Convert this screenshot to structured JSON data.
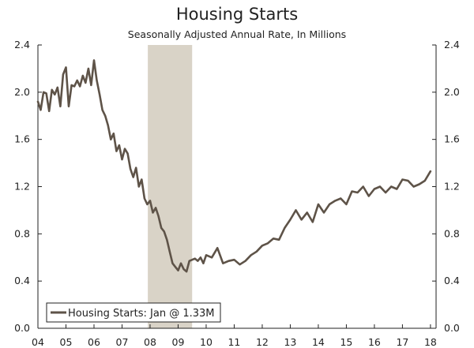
{
  "colors": {
    "line": "#5e5348",
    "recession": "#d9d3c7",
    "axis": "#222222"
  },
  "chart_data": {
    "type": "line",
    "title": "Housing Starts",
    "subtitle": "Seasonally Adjusted Annual Rate, In Millions",
    "xlabel": "",
    "ylabel": "",
    "x_tick_labels": [
      "04",
      "05",
      "06",
      "07",
      "08",
      "09",
      "10",
      "11",
      "12",
      "13",
      "14",
      "15",
      "16",
      "17",
      "18"
    ],
    "x_range": [
      2004,
      2018.2
    ],
    "y_tick_labels": [
      "0.0",
      "0.4",
      "0.8",
      "1.2",
      "1.6",
      "2.0",
      "2.4"
    ],
    "ylim": [
      0,
      2.4
    ],
    "right_axis": true,
    "grid": false,
    "recession_band": [
      2007.92,
      2009.5
    ],
    "legend": {
      "label": "Housing Starts: Jan @ 1.33M",
      "placement": "bottom-left"
    },
    "series": [
      {
        "name": "Housing Starts",
        "x": [
          2004.0,
          2004.1,
          2004.2,
          2004.3,
          2004.4,
          2004.5,
          2004.6,
          2004.7,
          2004.8,
          2004.9,
          2005.0,
          2005.1,
          2005.2,
          2005.3,
          2005.4,
          2005.5,
          2005.6,
          2005.7,
          2005.8,
          2005.9,
          2006.0,
          2006.1,
          2006.2,
          2006.3,
          2006.4,
          2006.5,
          2006.6,
          2006.7,
          2006.8,
          2006.9,
          2007.0,
          2007.1,
          2007.2,
          2007.3,
          2007.4,
          2007.5,
          2007.6,
          2007.7,
          2007.8,
          2007.9,
          2008.0,
          2008.1,
          2008.2,
          2008.3,
          2008.4,
          2008.5,
          2008.6,
          2008.7,
          2008.8,
          2008.9,
          2009.0,
          2009.1,
          2009.2,
          2009.3,
          2009.4,
          2009.5,
          2009.6,
          2009.7,
          2009.8,
          2009.9,
          2010.0,
          2010.2,
          2010.4,
          2010.6,
          2010.8,
          2011.0,
          2011.2,
          2011.4,
          2011.6,
          2011.8,
          2012.0,
          2012.2,
          2012.4,
          2012.6,
          2012.8,
          2013.0,
          2013.2,
          2013.4,
          2013.6,
          2013.8,
          2014.0,
          2014.2,
          2014.4,
          2014.6,
          2014.8,
          2015.0,
          2015.2,
          2015.4,
          2015.6,
          2015.8,
          2016.0,
          2016.2,
          2016.4,
          2016.6,
          2016.8,
          2017.0,
          2017.2,
          2017.4,
          2017.6,
          2017.8,
          2018.0
        ],
        "values": [
          1.92,
          1.85,
          2.0,
          1.99,
          1.84,
          2.02,
          1.98,
          2.04,
          1.88,
          2.15,
          2.21,
          1.88,
          2.06,
          2.05,
          2.1,
          2.05,
          2.14,
          2.08,
          2.2,
          2.06,
          2.27,
          2.1,
          1.98,
          1.85,
          1.8,
          1.72,
          1.6,
          1.65,
          1.5,
          1.55,
          1.43,
          1.52,
          1.48,
          1.35,
          1.28,
          1.36,
          1.2,
          1.26,
          1.1,
          1.05,
          1.08,
          0.98,
          1.02,
          0.95,
          0.85,
          0.82,
          0.75,
          0.65,
          0.55,
          0.52,
          0.49,
          0.55,
          0.5,
          0.48,
          0.57,
          0.58,
          0.59,
          0.57,
          0.6,
          0.55,
          0.62,
          0.6,
          0.68,
          0.55,
          0.57,
          0.58,
          0.54,
          0.57,
          0.62,
          0.65,
          0.7,
          0.72,
          0.76,
          0.75,
          0.85,
          0.92,
          1.0,
          0.92,
          0.98,
          0.9,
          1.05,
          0.98,
          1.05,
          1.08,
          1.1,
          1.05,
          1.16,
          1.15,
          1.2,
          1.12,
          1.18,
          1.2,
          1.15,
          1.2,
          1.18,
          1.26,
          1.25,
          1.2,
          1.22,
          1.25,
          1.33
        ]
      }
    ]
  }
}
